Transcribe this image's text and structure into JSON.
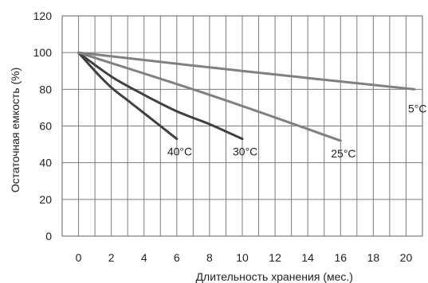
{
  "chart_data": {
    "type": "line",
    "title": "",
    "xlabel": "Длительность хранения (мес.)",
    "ylabel": "Остаточная емкость (%)",
    "xlim": [
      -1,
      21
    ],
    "ylim": [
      0,
      120
    ],
    "x_ticks": [
      0,
      2,
      4,
      6,
      8,
      10,
      12,
      14,
      16,
      18,
      20
    ],
    "y_ticks": [
      0,
      20,
      40,
      60,
      80,
      100,
      120
    ],
    "grid": true,
    "legend": "none",
    "series": [
      {
        "name": "40°C",
        "color": "#404040",
        "x": [
          0,
          1,
          2,
          3,
          4,
          5,
          6
        ],
        "y": [
          100,
          90,
          81,
          74,
          67,
          60,
          53
        ]
      },
      {
        "name": "30°C",
        "color": "#404040",
        "x": [
          0,
          2,
          4,
          6,
          8,
          10
        ],
        "y": [
          100,
          87,
          77,
          68,
          61,
          53
        ]
      },
      {
        "name": "25°C",
        "color": "#808080",
        "x": [
          0,
          8,
          16
        ],
        "y": [
          100,
          77,
          52
        ]
      },
      {
        "name": "5°C",
        "color": "#808080",
        "x": [
          0,
          10,
          20.5
        ],
        "y": [
          100,
          90,
          80
        ]
      }
    ]
  }
}
